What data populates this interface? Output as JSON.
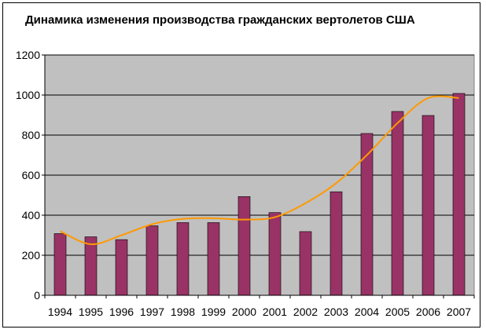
{
  "chart_data": {
    "type": "bar",
    "title": "Динамика изменения производства гражданских вертолетов США",
    "xlabel": "",
    "ylabel": "",
    "ylim": [
      0,
      1200
    ],
    "yticks": [
      0,
      200,
      400,
      600,
      800,
      1000,
      1200
    ],
    "grid": true,
    "legend": "none",
    "categories": [
      "1994",
      "1995",
      "1996",
      "1997",
      "1998",
      "1999",
      "2000",
      "2001",
      "2002",
      "2003",
      "2004",
      "2005",
      "2006",
      "2007"
    ],
    "series": [
      {
        "values": [
          308,
          292,
          278,
          347,
          363,
          363,
          493,
          413,
          318,
          517,
          808,
          918,
          898,
          1008
        ]
      }
    ],
    "trendline": {
      "type": "polynomial",
      "values": [
        320,
        255,
        300,
        355,
        382,
        385,
        378,
        390,
        460,
        560,
        700,
        860,
        985,
        985
      ]
    },
    "colors": {
      "bar": "#993366",
      "trendline": "#ff9900",
      "plot_background": "#c0c0c0",
      "gridline": "#000000"
    }
  }
}
